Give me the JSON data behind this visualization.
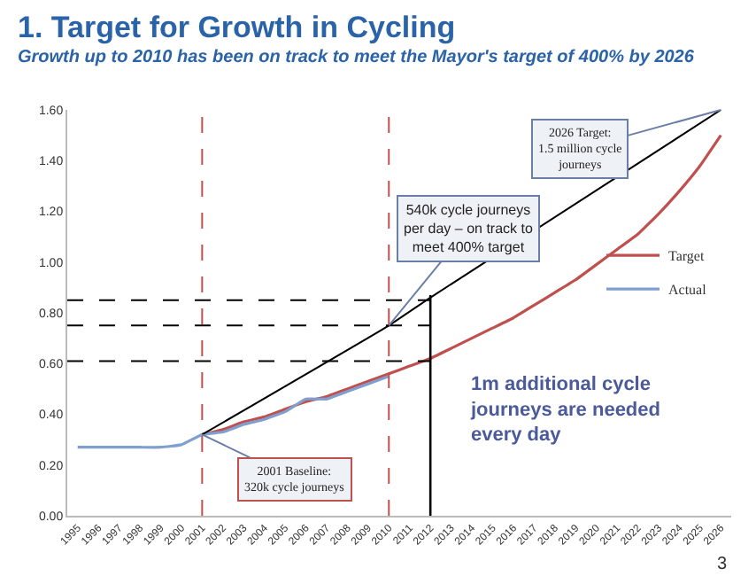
{
  "chart_data": {
    "type": "line",
    "title": "1. Target for Growth in Cycling",
    "subtitle": "Growth up to 2010 has been on track to meet the Mayor's target of 400% by 2026",
    "categories": [
      "1995",
      "1996",
      "1997",
      "1998",
      "1999",
      "2000",
      "2001",
      "2002",
      "2003",
      "2004",
      "2005",
      "2006",
      "2007",
      "2008",
      "2009",
      "2010",
      "2011",
      "2012",
      "2013",
      "2014",
      "2015",
      "2016",
      "2017",
      "2018",
      "2019",
      "2020",
      "2021",
      "2022",
      "2023",
      "2024",
      "2025",
      "2026"
    ],
    "series": [
      {
        "name": "Target",
        "color": "#c0504d",
        "values": [
          null,
          null,
          null,
          null,
          null,
          null,
          0.32,
          0.34,
          0.37,
          0.39,
          0.42,
          0.45,
          0.47,
          0.5,
          0.53,
          0.56,
          0.59,
          0.62,
          0.66,
          0.7,
          0.74,
          0.78,
          0.83,
          0.88,
          0.93,
          0.99,
          1.05,
          1.11,
          1.19,
          1.28,
          1.38,
          1.5
        ]
      },
      {
        "name": "Actual",
        "color": "#7f9fcf",
        "values": [
          0.27,
          0.27,
          0.27,
          0.27,
          0.27,
          0.28,
          0.32,
          0.33,
          0.36,
          0.38,
          0.41,
          0.46,
          0.46,
          0.49,
          0.52,
          0.55,
          null,
          null,
          null,
          null,
          null,
          null,
          null,
          null,
          null,
          null,
          null,
          null,
          null,
          null,
          null,
          null
        ]
      },
      {
        "type": "line",
        "color": "#000000",
        "values": [
          null,
          null,
          null,
          null,
          null,
          null,
          0.32,
          null,
          null,
          null,
          null,
          null,
          null,
          null,
          null,
          0.75,
          null,
          0.86,
          null,
          null,
          null,
          null,
          null,
          null,
          null,
          null,
          null,
          null,
          null,
          null,
          null,
          1.6
        ]
      }
    ],
    "ylim": [
      0,
      1.6
    ],
    "yticks": [
      {
        "value": 0,
        "label": "0.00"
      },
      {
        "value": 0.2,
        "label": "0.20"
      },
      {
        "value": 0.4,
        "label": "0.40"
      },
      {
        "value": 0.6,
        "label": "0.60"
      },
      {
        "value": 0.8,
        "label": "0.80"
      },
      {
        "value": 1.0,
        "label": "1.00"
      },
      {
        "value": 1.2,
        "label": "1.20"
      },
      {
        "value": 1.4,
        "label": "1.40"
      },
      {
        "value": 1.6,
        "label": "1.60"
      }
    ],
    "legend": "right",
    "marker": "none",
    "line_style": "solid",
    "ref_lines": [
      {
        "axis": "y",
        "value": 0.85,
        "color": "#000000",
        "line_style": "dashed"
      },
      {
        "axis": "y",
        "value": 0.75,
        "color": "#000000",
        "line_style": "dashed"
      },
      {
        "axis": "y",
        "value": 0.61,
        "color": "#000000",
        "line_style": "dashed"
      },
      {
        "axis": "x",
        "value": "2001",
        "color": "#c0504d",
        "line_style": "dashed"
      },
      {
        "axis": "x",
        "value": "2010",
        "color": "#c0504d",
        "line_style": "dashed"
      },
      {
        "axis": "x",
        "value": "2012",
        "color": "#000000",
        "line_style": "solid"
      }
    ],
    "annotations": [
      {
        "text": "2026 Target:\n1.5 million cycle\njourneys",
        "x": "2026",
        "y": 1.6
      },
      {
        "text": "540k cycle journeys\nper day – on track to\nmeet 400% target",
        "x": "2010",
        "y": 0.75
      },
      {
        "text": "2001 Baseline:\n320k cycle journeys",
        "x": "2001",
        "y": 0.32
      },
      "1m additional cycle\njourneys are needed\nevery day",
      "3"
    ]
  }
}
